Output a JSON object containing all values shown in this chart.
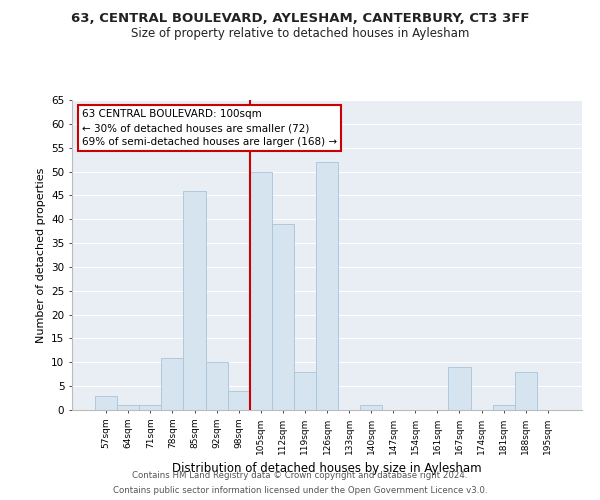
{
  "title": "63, CENTRAL BOULEVARD, AYLESHAM, CANTERBURY, CT3 3FF",
  "subtitle": "Size of property relative to detached houses in Aylesham",
  "xlabel": "Distribution of detached houses by size in Aylesham",
  "ylabel": "Number of detached properties",
  "bin_labels": [
    "57sqm",
    "64sqm",
    "71sqm",
    "78sqm",
    "85sqm",
    "92sqm",
    "98sqm",
    "105sqm",
    "112sqm",
    "119sqm",
    "126sqm",
    "133sqm",
    "140sqm",
    "147sqm",
    "154sqm",
    "161sqm",
    "167sqm",
    "174sqm",
    "181sqm",
    "188sqm",
    "195sqm"
  ],
  "bar_heights": [
    3,
    1,
    1,
    11,
    46,
    10,
    4,
    50,
    39,
    8,
    52,
    0,
    1,
    0,
    0,
    0,
    9,
    0,
    1,
    8,
    0
  ],
  "bar_color": "#d6e4f0",
  "bar_edge_color": "#a8c4d8",
  "vline_x": 6.5,
  "vline_color": "#cc0000",
  "ylim": [
    0,
    65
  ],
  "yticks": [
    0,
    5,
    10,
    15,
    20,
    25,
    30,
    35,
    40,
    45,
    50,
    55,
    60,
    65
  ],
  "annotation_title": "63 CENTRAL BOULEVARD: 100sqm",
  "annotation_line1": "← 30% of detached houses are smaller (72)",
  "annotation_line2": "69% of semi-detached houses are larger (168) →",
  "footer1": "Contains HM Land Registry data © Crown copyright and database right 2024.",
  "footer2": "Contains public sector information licensed under the Open Government Licence v3.0.",
  "background_color": "#ffffff",
  "grid_color": "#e8eef4"
}
